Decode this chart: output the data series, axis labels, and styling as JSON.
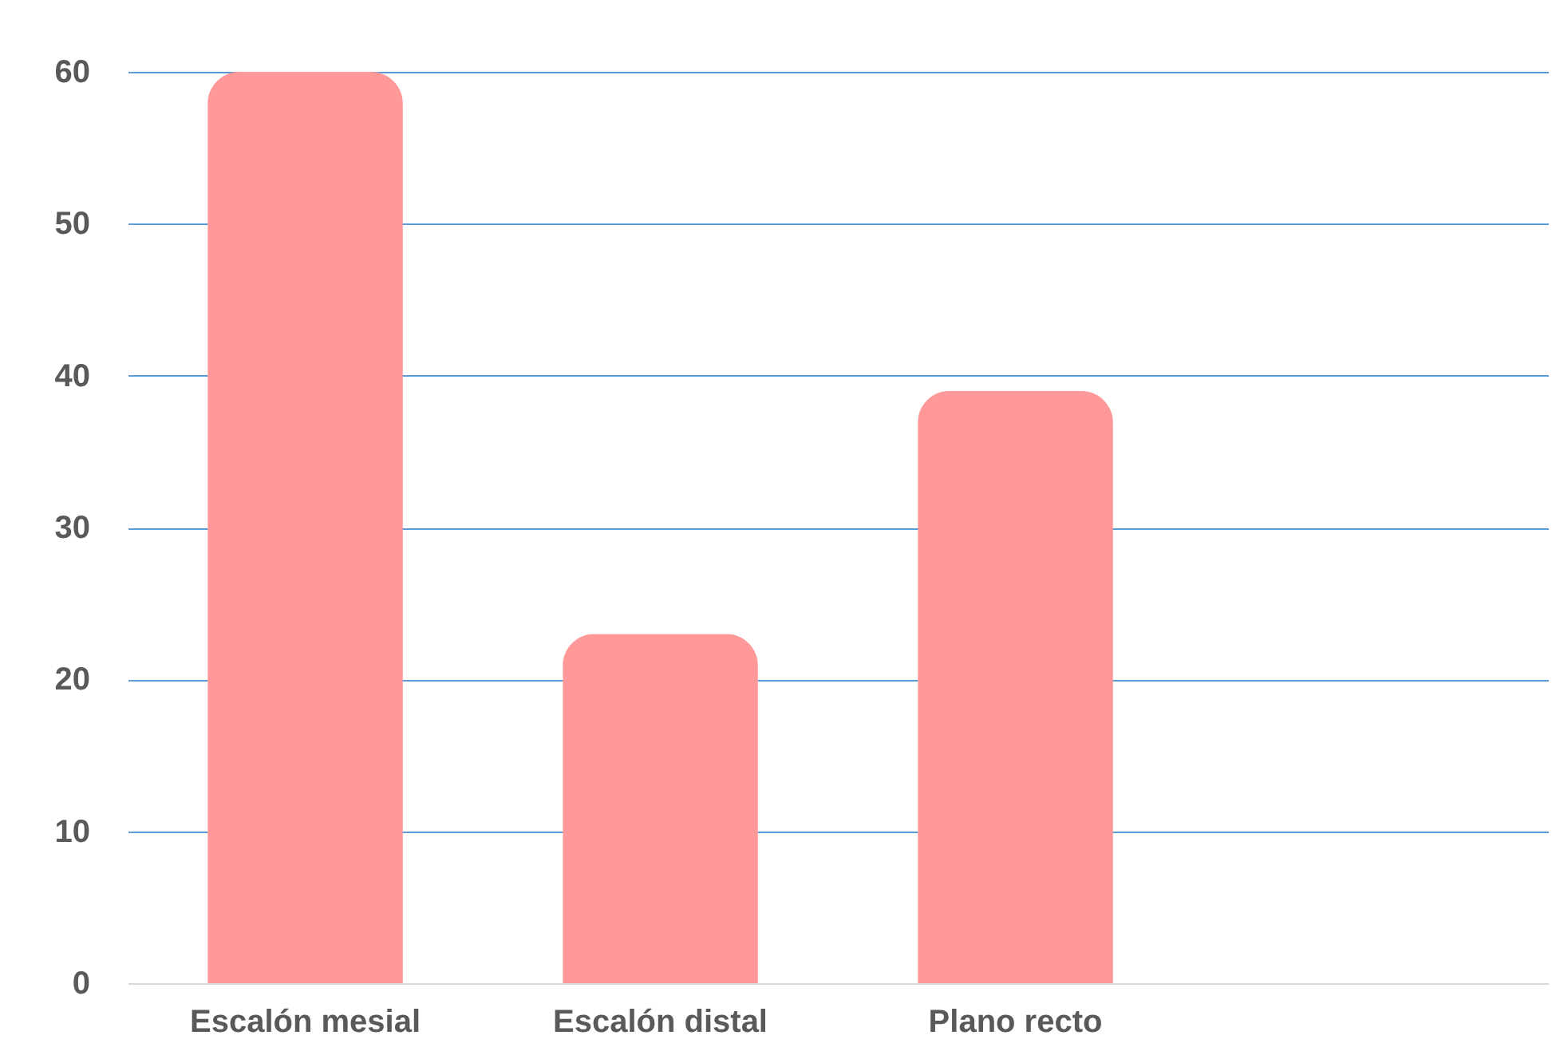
{
  "chart_data": {
    "type": "bar",
    "categories": [
      "Escalón mesial",
      "Escalón distal",
      "Plano recto",
      null
    ],
    "values": [
      60,
      23,
      39,
      null
    ],
    "color": "#ff9999",
    "ylim": [
      0,
      60
    ],
    "yticks": [
      0,
      10,
      20,
      30,
      40,
      50,
      60
    ],
    "grid": "y"
  }
}
